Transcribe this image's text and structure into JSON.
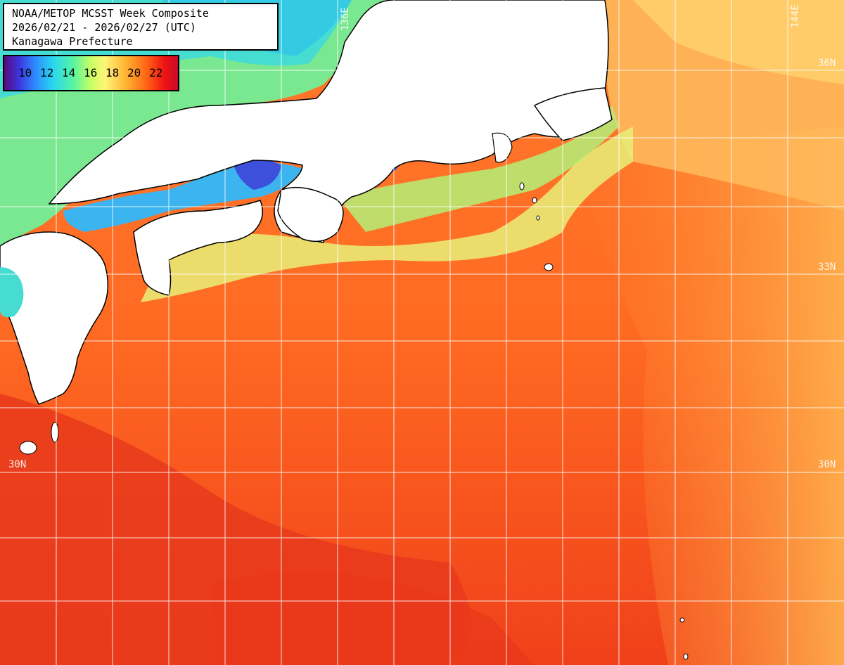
{
  "title": {
    "line1": "NOAA/METOP MCSST Week Composite",
    "line2": "2026/02/21 - 2026/02/27 (UTC)",
    "line3": "Kanagawa Prefecture"
  },
  "legend": {
    "ticks": [
      "10",
      "12",
      "14",
      "16",
      "18",
      "20",
      "22"
    ],
    "colors": {
      "c10": "#5a0a78",
      "c12": "#2e8cff",
      "c14": "#28d7f0",
      "c16": "#5af5a0",
      "c18": "#fff578",
      "c20": "#ff6414",
      "c22": "#c80a28"
    }
  },
  "grid_labels": {
    "lon_136": "136E",
    "lon_144": "144E",
    "lat_36_right": "36N",
    "lat_33_right": "33N",
    "lat_30_left": "30N",
    "lat_30_right": "30N"
  },
  "colors": {
    "land": "#ffffff",
    "coast": "#000000",
    "grid": "#ffffff",
    "sea_warm": "#ff5a1e",
    "sea_hot": "#e8321e",
    "sea_mild": "#ffa046",
    "sea_cool": "#b4f078",
    "sea_cold": "#46dcd2",
    "sea_coldest": "#3c50dc"
  }
}
